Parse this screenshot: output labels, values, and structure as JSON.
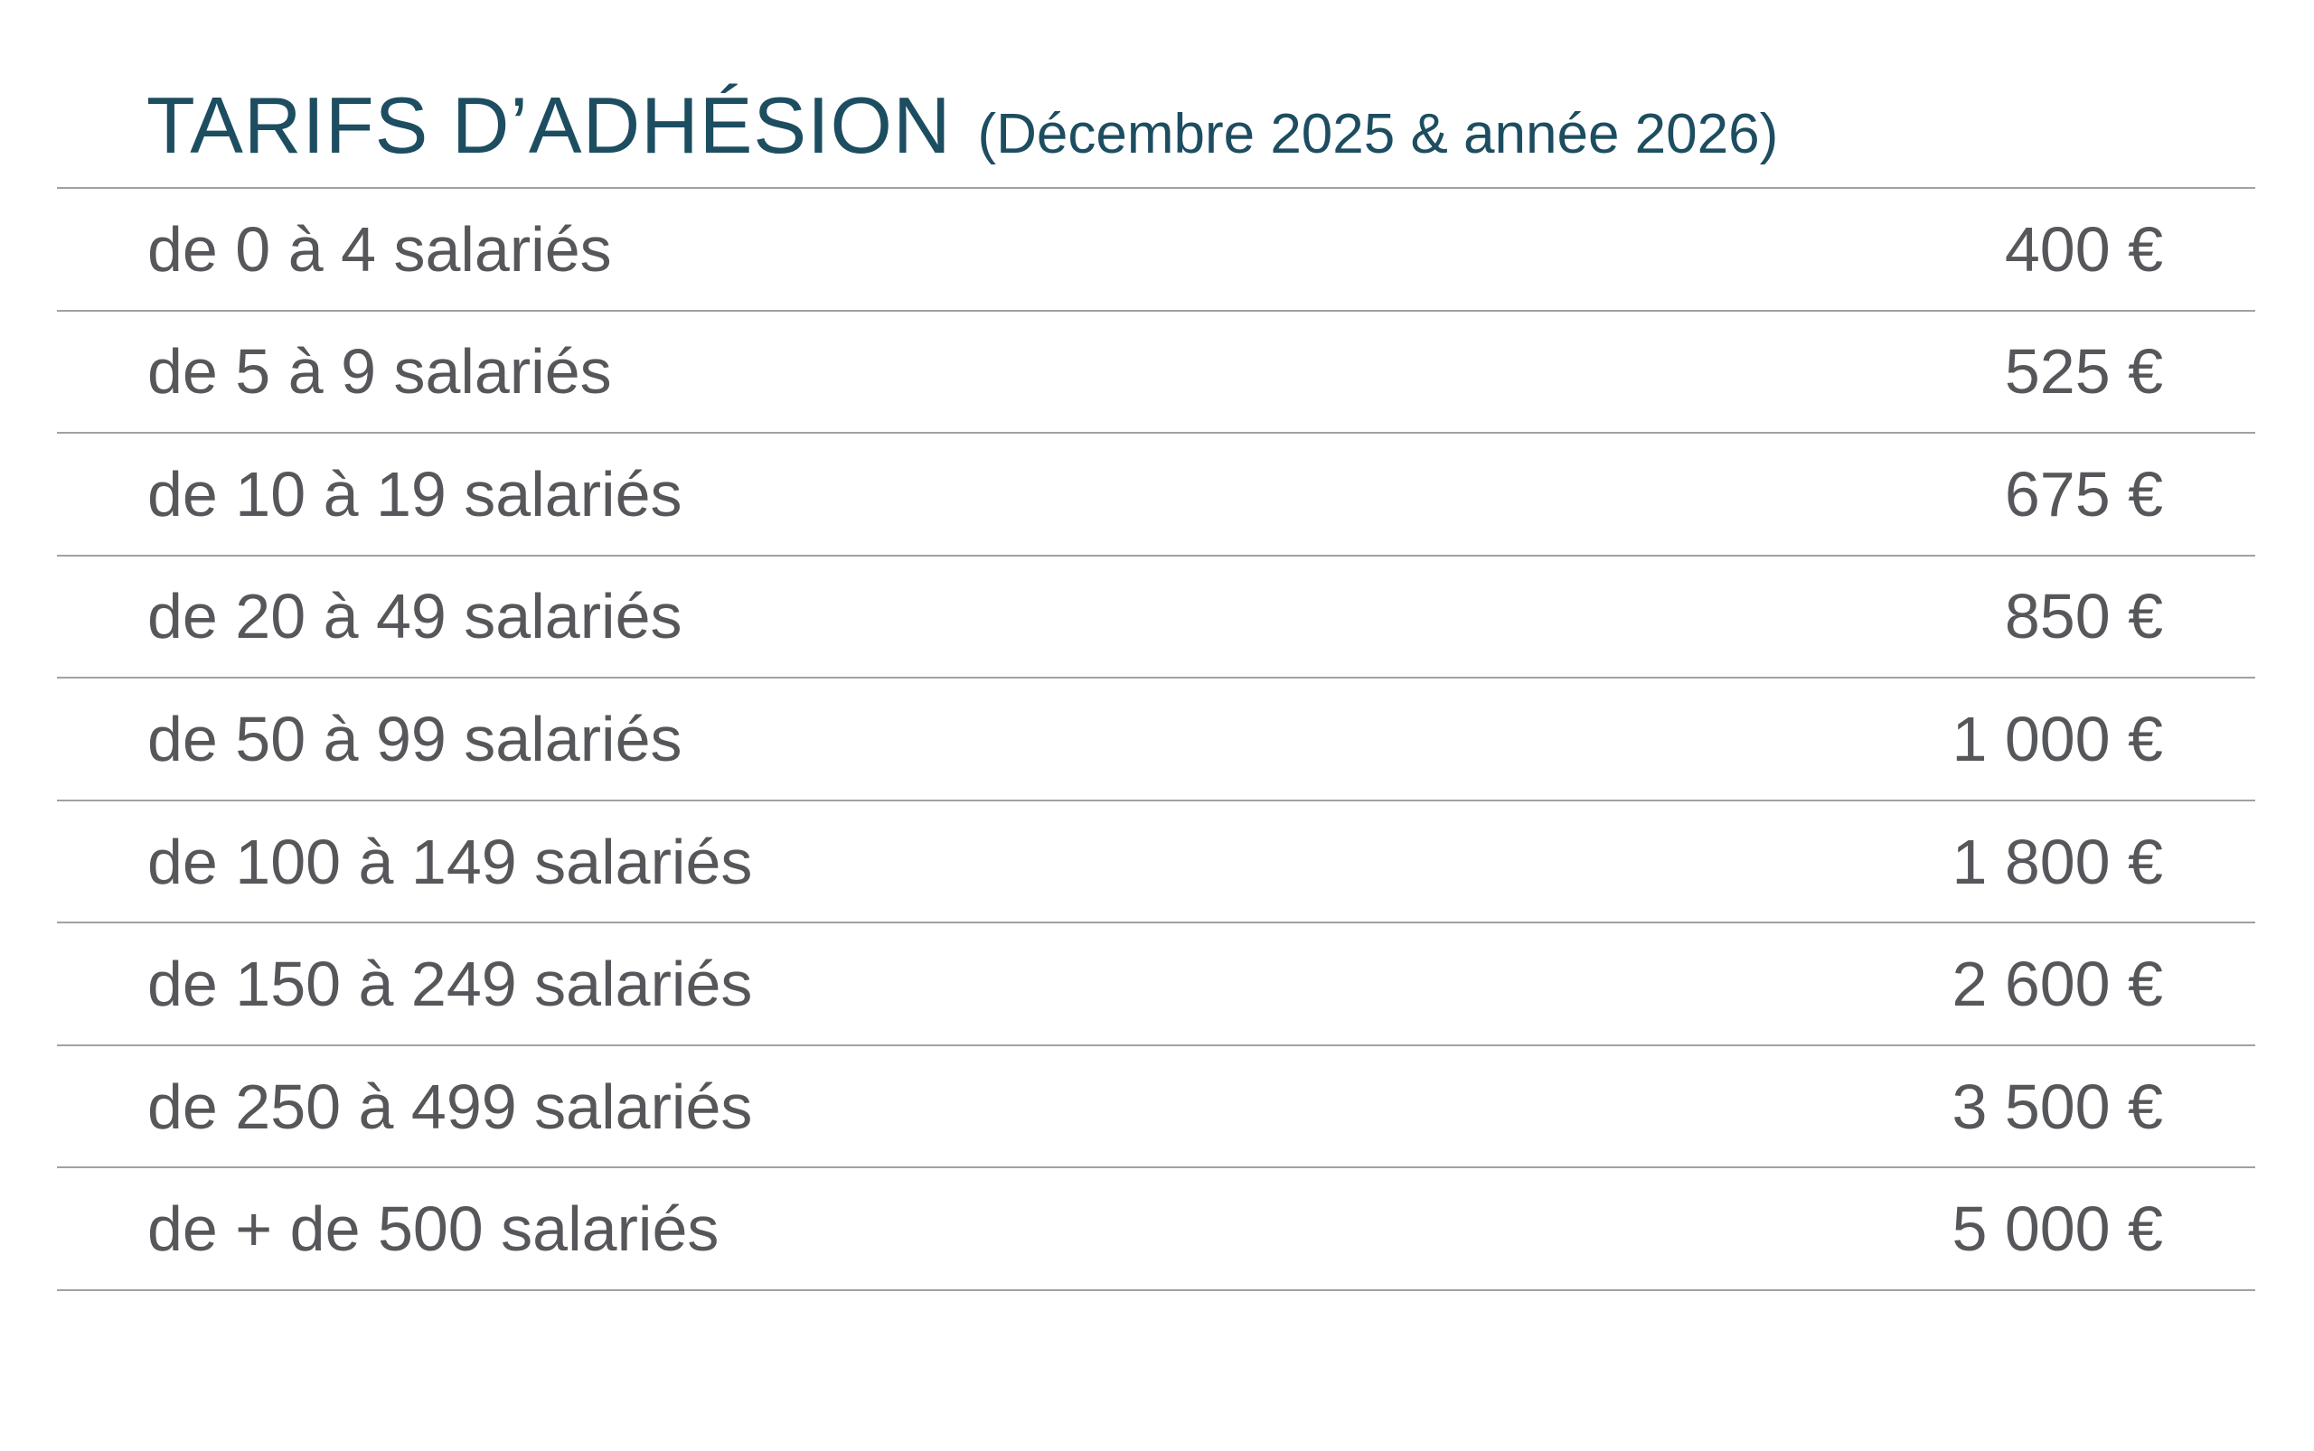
{
  "header": {
    "title": "TARIFS D’ADHÉSION",
    "subtitle": "(Décembre 2025 & année 2026)"
  },
  "table": {
    "rows": [
      {
        "label": "de 0 à 4 salariés",
        "price": "400 €"
      },
      {
        "label": "de 5 à 9 salariés",
        "price": "525 €"
      },
      {
        "label": "de 10 à 19 salariés",
        "price": "675 €"
      },
      {
        "label": "de 20 à 49 salariés",
        "price": "850 €"
      },
      {
        "label": "de 50 à 99 salariés",
        "price": "1 000 €"
      },
      {
        "label": "de 100 à 149 salariés",
        "price": "1 800 €"
      },
      {
        "label": "de 150 à 249 salariés",
        "price": "2 600 €"
      },
      {
        "label": "de 250 à 499 salariés",
        "price": "3 500 €"
      },
      {
        "label": "de + de 500 salariés",
        "price": "5 000 €"
      }
    ]
  },
  "colors": {
    "title": "#1d4d60",
    "text": "#56575a",
    "divider": "#a0a1a3",
    "bg": "#ffffff"
  }
}
